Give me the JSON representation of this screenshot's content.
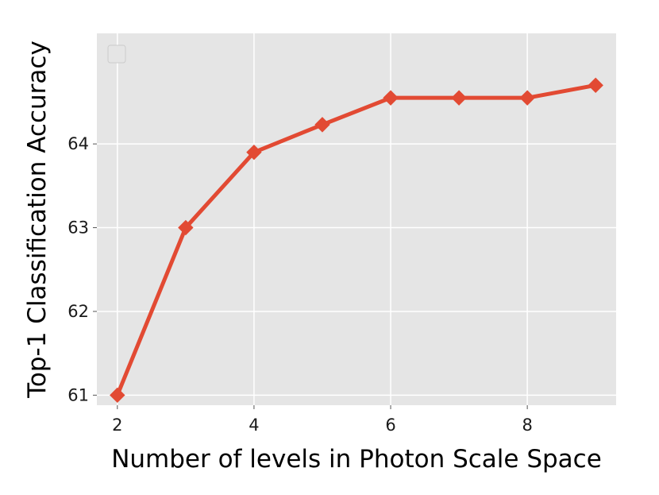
{
  "chart_data": {
    "type": "line",
    "title": "",
    "xlabel": "Number of levels in Photon Scale Space",
    "ylabel": "Top-1 Classification Accuracy",
    "x": [
      2,
      3,
      4,
      5,
      6,
      7,
      8,
      9
    ],
    "series": [
      {
        "values": [
          61.0,
          63.0,
          63.9,
          64.23,
          64.55,
          64.55,
          64.55,
          64.7
        ],
        "marker": "diamond"
      }
    ],
    "xlim": [
      1.7,
      9.3
    ],
    "ylim": [
      60.88,
      65.32
    ],
    "xticks": [
      2,
      4,
      6,
      8
    ],
    "yticks": [
      61,
      62,
      63,
      64
    ],
    "xtick_labels": [
      "2",
      "4",
      "6",
      "8"
    ],
    "ytick_labels": [
      "61",
      "62",
      "63",
      "64"
    ],
    "grid": true,
    "legend": "top-left, empty",
    "style": "ggplot",
    "colors": {
      "series": "#e24a33",
      "plot_background": "#e5e5e5",
      "grid": "#ffffff",
      "legend_border": "#cccccc"
    }
  }
}
